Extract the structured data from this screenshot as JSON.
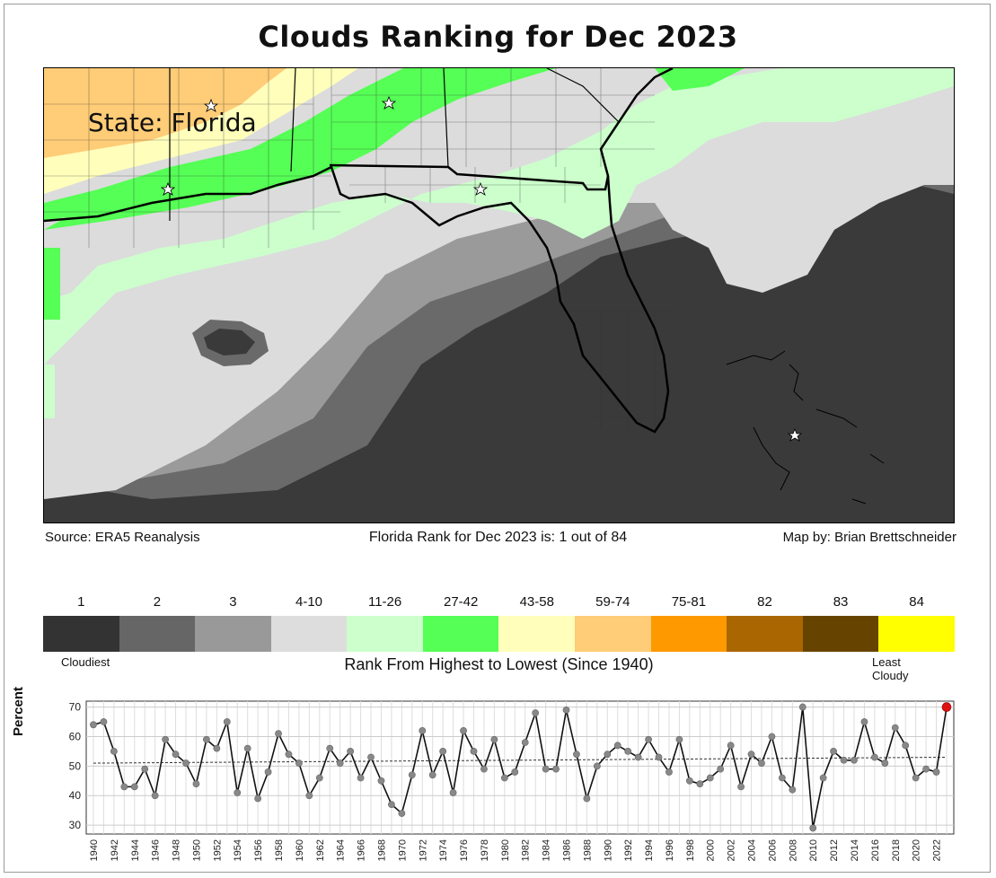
{
  "title": "Clouds Ranking for Dec 2023",
  "map": {
    "state_label": "State: Florida",
    "marker_icon": "star-icon"
  },
  "captions": {
    "source": "Source: ERA5 Reanalysis",
    "rank_statement": "Florida Rank for Dec 2023 is: 1 out of 84",
    "credit": "Map by: Brian Brettschneider"
  },
  "legend": {
    "labels": [
      "1",
      "2",
      "3",
      "4-10",
      "11-26",
      "27-42",
      "43-58",
      "59-74",
      "75-81",
      "82",
      "83",
      "84"
    ],
    "colors": [
      "#333333",
      "#666666",
      "#999999",
      "#dddddd",
      "#ccffcc",
      "#55ff55",
      "#ffffbb",
      "#ffcc77",
      "#ff9900",
      "#aa6600",
      "#664400",
      "#ffff00"
    ],
    "left_text": "Cloudiest",
    "center_text": "Rank From Highest to Lowest (Since 1940)",
    "right_text": "Least Cloudy"
  },
  "chart_data": {
    "type": "line",
    "ylabel": "Percent",
    "ylim": [
      27,
      72
    ],
    "yticks": [
      30,
      40,
      50,
      60,
      70
    ],
    "x": [
      1940,
      1941,
      1942,
      1943,
      1944,
      1945,
      1946,
      1947,
      1948,
      1949,
      1950,
      1951,
      1952,
      1953,
      1954,
      1955,
      1956,
      1957,
      1958,
      1959,
      1960,
      1961,
      1962,
      1963,
      1964,
      1965,
      1966,
      1967,
      1968,
      1969,
      1970,
      1971,
      1972,
      1973,
      1974,
      1975,
      1976,
      1977,
      1978,
      1979,
      1980,
      1981,
      1982,
      1983,
      1984,
      1985,
      1986,
      1987,
      1988,
      1989,
      1990,
      1991,
      1992,
      1993,
      1994,
      1995,
      1996,
      1997,
      1998,
      1999,
      2000,
      2001,
      2002,
      2003,
      2004,
      2005,
      2006,
      2007,
      2008,
      2009,
      2010,
      2011,
      2012,
      2013,
      2014,
      2015,
      2016,
      2017,
      2018,
      2019,
      2020,
      2021,
      2022,
      2023
    ],
    "xticks": [
      1940,
      1942,
      1944,
      1946,
      1948,
      1950,
      1952,
      1954,
      1956,
      1958,
      1960,
      1962,
      1964,
      1966,
      1968,
      1970,
      1972,
      1974,
      1976,
      1978,
      1980,
      1982,
      1984,
      1986,
      1988,
      1990,
      1992,
      1994,
      1996,
      1998,
      2000,
      2002,
      2004,
      2006,
      2008,
      2010,
      2012,
      2014,
      2016,
      2018,
      2020,
      2022
    ],
    "values": [
      64,
      65,
      55,
      43,
      43,
      49,
      40,
      59,
      54,
      51,
      44,
      59,
      56,
      65,
      41,
      56,
      39,
      48,
      61,
      54,
      51,
      40,
      46,
      56,
      51,
      55,
      46,
      53,
      45,
      37,
      34,
      47,
      62,
      47,
      55,
      41,
      62,
      55,
      49,
      59,
      46,
      48,
      58,
      68,
      49,
      49,
      69,
      54,
      39,
      50,
      54,
      57,
      55,
      53,
      59,
      53,
      48,
      59,
      45,
      44,
      46,
      49,
      57,
      43,
      54,
      51,
      60,
      46,
      42,
      70,
      29,
      46,
      55,
      52,
      52,
      65,
      53,
      51,
      63,
      57,
      46,
      49,
      48,
      70
    ],
    "trend": [
      51,
      53
    ],
    "highlight_year": 2023,
    "grid": true
  }
}
